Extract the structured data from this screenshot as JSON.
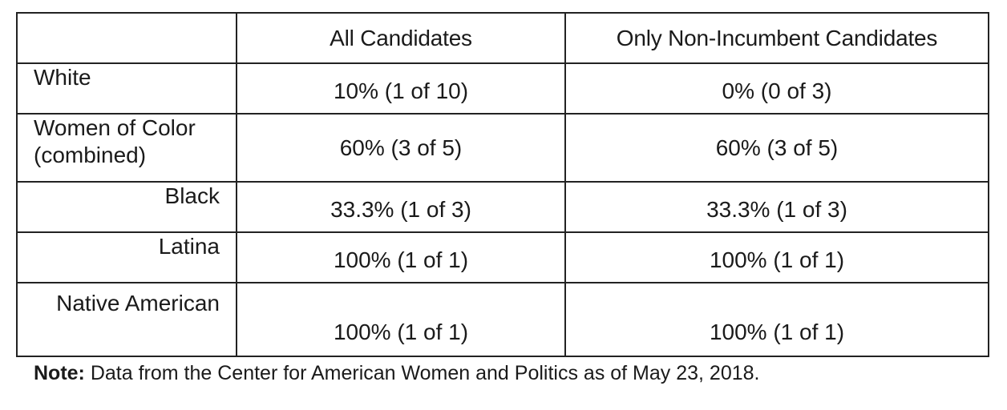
{
  "table": {
    "headers": [
      "",
      "All Candidates",
      "Only Non-Incumbent Candidates"
    ],
    "rows": [
      {
        "label": "White",
        "all_candidates": "10% (1 of 10)",
        "non_incumbent": "0% (0 of 3)"
      },
      {
        "label": "Women of Color (combined)",
        "all_candidates": "60% (3 of 5)",
        "non_incumbent": "60% (3 of 5)"
      },
      {
        "label": "Black",
        "all_candidates": "33.3% (1 of 3)",
        "non_incumbent": "33.3% (1 of 3)"
      },
      {
        "label": "Latina",
        "all_candidates": "100% (1 of 1)",
        "non_incumbent": "100% (1 of 1)"
      },
      {
        "label": "Native American",
        "all_candidates": "100% (1 of 1)",
        "non_incumbent": "100% (1 of 1)"
      }
    ]
  },
  "note": {
    "label": "Note:",
    "text": " Data from the Center for American Women and Politics as of May 23, 2018."
  }
}
